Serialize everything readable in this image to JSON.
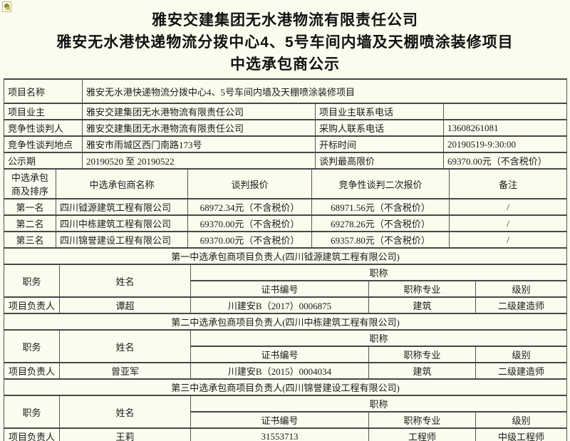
{
  "colors": {
    "page_bg": "#fbfcee",
    "border": "#474747",
    "text": "#1b1b1b"
  },
  "icon": {
    "name": "broken-image-placeholder"
  },
  "title": {
    "line1": "雅安交建集团无水港物流有限责任公司",
    "line2": "雅安无水港快递物流分拨中心4、5号车间内墙及天棚喷涂装修项目",
    "line3": "中选承包商公示"
  },
  "info_table": {
    "rows": [
      {
        "label": "项目名称",
        "value": "雅安无水港快递物流分拨中心4、5号车间内墙及天棚喷涂装修项目"
      },
      {
        "label": "项目业主",
        "value": "雅安交建集团无水港物流有限责任公司",
        "label2": "项目业主联系电话",
        "value2": ""
      },
      {
        "label": "竞争性谈判人",
        "value": "雅安交建集团无水港物流有限责任公司",
        "label2": "采购人联系电话",
        "value2": "13608261081"
      },
      {
        "label": "竞争性谈判地点",
        "value": "雅安市雨城区西门南路173号",
        "label2": "开标时间",
        "value2": "20190519-9:30:00"
      },
      {
        "label": "公示期",
        "value": "20190520  至  20190522",
        "label2": "谈判最高限价",
        "value2": "69370.00元（不含税价）"
      }
    ]
  },
  "bidders_table": {
    "headers": {
      "rank": "中选承包商及排序",
      "name": "中选承包商名称",
      "quote": "谈判报价",
      "second_quote": "竞争性谈判二次报价",
      "remark": "备注"
    },
    "rows": [
      {
        "rank": "第一名",
        "name": "四川钺源建筑工程有限公司",
        "quote": "68972.34元（不含税价）",
        "second_quote": "68971.56元（不含税价）",
        "remark": "/"
      },
      {
        "rank": "第二名",
        "name": "四川中栋建筑工程有限公司",
        "quote": "69370.00元（不含税价）",
        "second_quote": "69278.26元（不含税价）",
        "remark": "/"
      },
      {
        "rank": "第三名",
        "name": "四川锦誉建设工程有限公司",
        "quote": "69370.00元（不含税价）",
        "second_quote": "69357.80元（不含税价）",
        "remark": "/"
      }
    ]
  },
  "personnel": {
    "headers": {
      "role": "职务",
      "name": "姓名",
      "title": "职称",
      "cert": "证书编号",
      "major": "职称专业",
      "level": "级别"
    },
    "sections": [
      {
        "title": "第一中选承包商项目负责人(四川钺源建筑工程有限公司)",
        "role": "项目负责人",
        "name": "谭超",
        "cert": "川建安B（2017）0006875",
        "major": "建筑",
        "level": "二级建造师"
      },
      {
        "title": "第二中选承包商项目负责人(四川中栋建筑工程有限公司)",
        "role": "项目负责人",
        "name": "曾亚军",
        "cert": "川建安B（2015）0004034",
        "major": "建筑",
        "level": "二级建造师"
      },
      {
        "title": "第三中选承包商项目负责人(四川锦誉建设工程有限公司)",
        "role": "项目负责人",
        "name": "王莉",
        "cert": "31553713",
        "major": "工程师",
        "level": "中级工程师"
      }
    ]
  }
}
